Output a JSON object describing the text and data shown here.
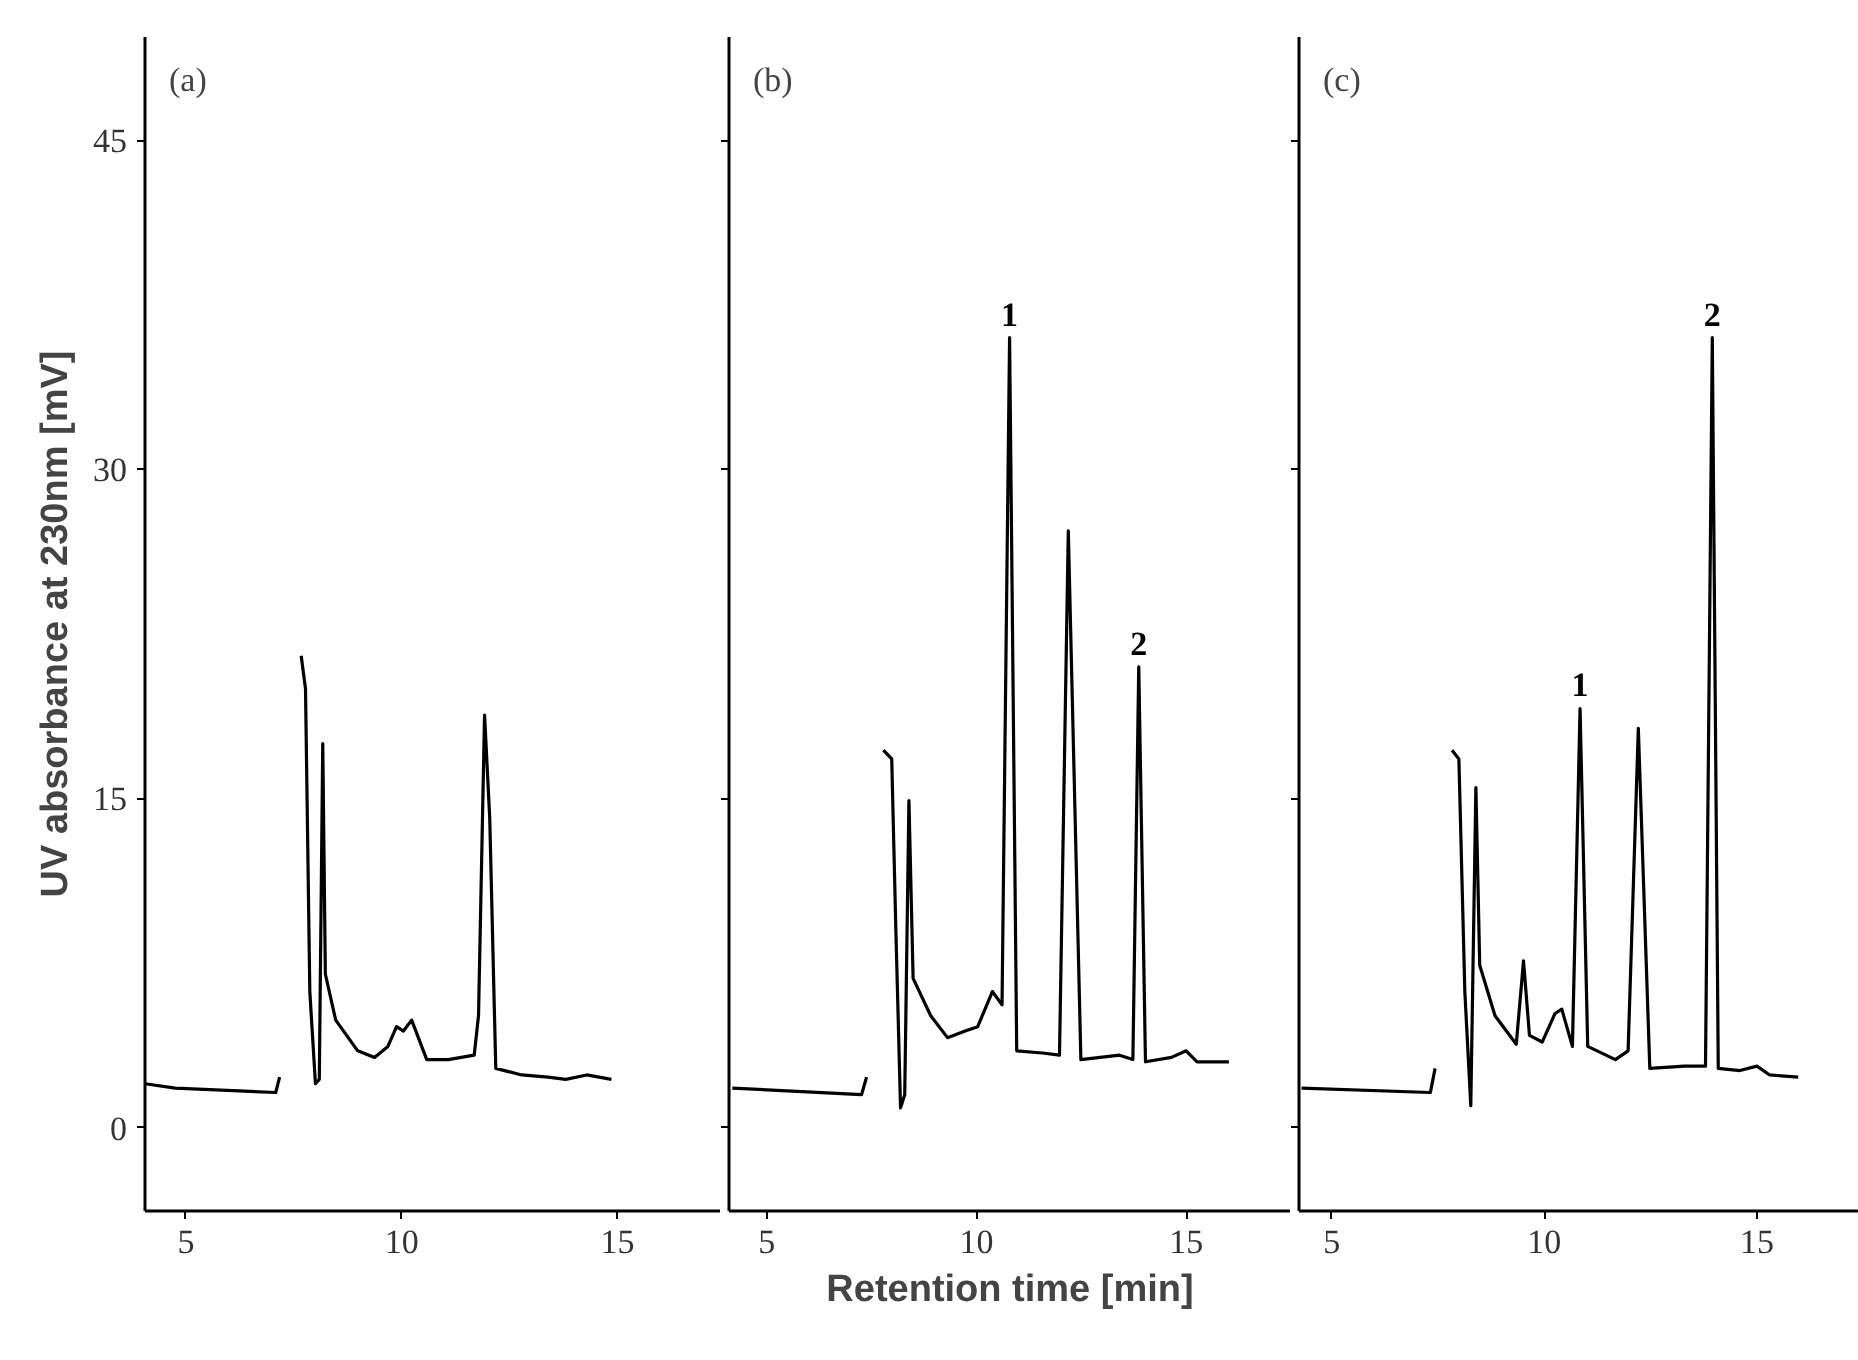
{
  "chart_data": [
    {
      "type": "line",
      "color": "#000000",
      "ylabel": "UV absorbance at 230nm [mV]",
      "xlim": [
        4.05,
        17.4
      ],
      "ylim": [
        -3.8,
        49.7
      ],
      "xticks": [
        5,
        10,
        15
      ],
      "yticks": [
        0,
        15,
        30,
        45
      ],
      "annotations": [
        "(a)"
      ],
      "x": [
        4.05,
        4.75,
        7.08,
        7.17,
        7.2,
        7.37,
        7.67,
        7.77,
        7.87,
        8.0,
        8.09,
        8.17,
        8.23,
        8.47,
        8.98,
        9.37,
        9.68,
        9.88,
        10.04,
        10.23,
        10.58,
        11.08,
        11.68,
        11.78,
        11.92,
        12.04,
        12.18,
        12.78,
        13.39,
        13.8,
        14.29,
        14.86
      ],
      "values": [
        2.0,
        1.8,
        1.6,
        2.3,
        null,
        null,
        21.5,
        20,
        6.2,
        2.0,
        2.2,
        17.5,
        7.0,
        4.9,
        3.5,
        3.2,
        3.7,
        4.6,
        4.4,
        4.9,
        3.1,
        3.1,
        3.3,
        5.1,
        18.8,
        14.1,
        2.7,
        2.4,
        2.3,
        2.2,
        2.4,
        2.2
      ]
    },
    {
      "type": "line",
      "color": "#000000",
      "xlabel": "Retention time [min]",
      "xlim": [
        4.1,
        17.5
      ],
      "ylim": [
        -3.8,
        49.7
      ],
      "xticks": [
        5,
        10,
        15
      ],
      "yticks": [
        0,
        15,
        30,
        45
      ],
      "tick_labels": "x",
      "annotations": [
        "(b)",
        {
          "text": "1",
          "x": 10.79,
          "y": 36.0
        },
        {
          "text": "2",
          "x": 13.87,
          "y": 21.0
        }
      ],
      "x": [
        4.18,
        7.26,
        7.38,
        7.47,
        7.61,
        7.78,
        7.98,
        8.08,
        8.19,
        8.29,
        8.39,
        8.49,
        8.91,
        9.31,
        9.73,
        10.03,
        10.38,
        10.61,
        10.79,
        10.96,
        11.57,
        11.98,
        12.19,
        12.49,
        13.41,
        13.73,
        13.87,
        14.03,
        14.65,
        15.0,
        15.26,
        16.02
      ],
      "values": [
        1.8,
        1.5,
        2.3,
        null,
        null,
        17.2,
        16.8,
        8.9,
        0.9,
        1.5,
        14.9,
        6.8,
        5.1,
        4.1,
        4.4,
        4.6,
        6.2,
        5.6,
        36.0,
        3.5,
        3.4,
        3.3,
        27.2,
        3.1,
        3.3,
        3.1,
        21.0,
        3.0,
        3.2,
        3.5,
        3.0,
        3.0
      ]
    },
    {
      "type": "line",
      "color": "#000000",
      "xlim": [
        4.23,
        17.4
      ],
      "ylim": [
        -3.8,
        49.7
      ],
      "xticks": [
        5,
        10,
        15
      ],
      "yticks": [
        0,
        15,
        30,
        45
      ],
      "tick_labels": "x",
      "annotations": [
        "(c)",
        {
          "text": "1",
          "x": 10.84,
          "y": 19.1
        },
        {
          "text": "2",
          "x": 13.95,
          "y": 36.0
        }
      ],
      "x": [
        4.29,
        7.32,
        7.43,
        7.49,
        7.63,
        7.83,
        7.99,
        8.13,
        8.27,
        8.39,
        8.48,
        8.84,
        9.34,
        9.51,
        9.65,
        9.95,
        10.25,
        10.41,
        10.66,
        10.84,
        11.02,
        11.67,
        11.97,
        12.21,
        12.48,
        13.29,
        13.79,
        13.95,
        14.09,
        14.6,
        15.0,
        15.3,
        15.97
      ],
      "values": [
        1.8,
        1.6,
        2.7,
        null,
        null,
        17.2,
        16.8,
        6.2,
        1.0,
        15.5,
        7.4,
        5.1,
        3.8,
        7.6,
        4.2,
        3.9,
        5.2,
        5.4,
        3.7,
        19.1,
        3.7,
        3.1,
        3.5,
        18.2,
        2.7,
        2.8,
        2.8,
        36.0,
        2.7,
        2.6,
        2.8,
        2.4,
        2.3
      ]
    }
  ]
}
